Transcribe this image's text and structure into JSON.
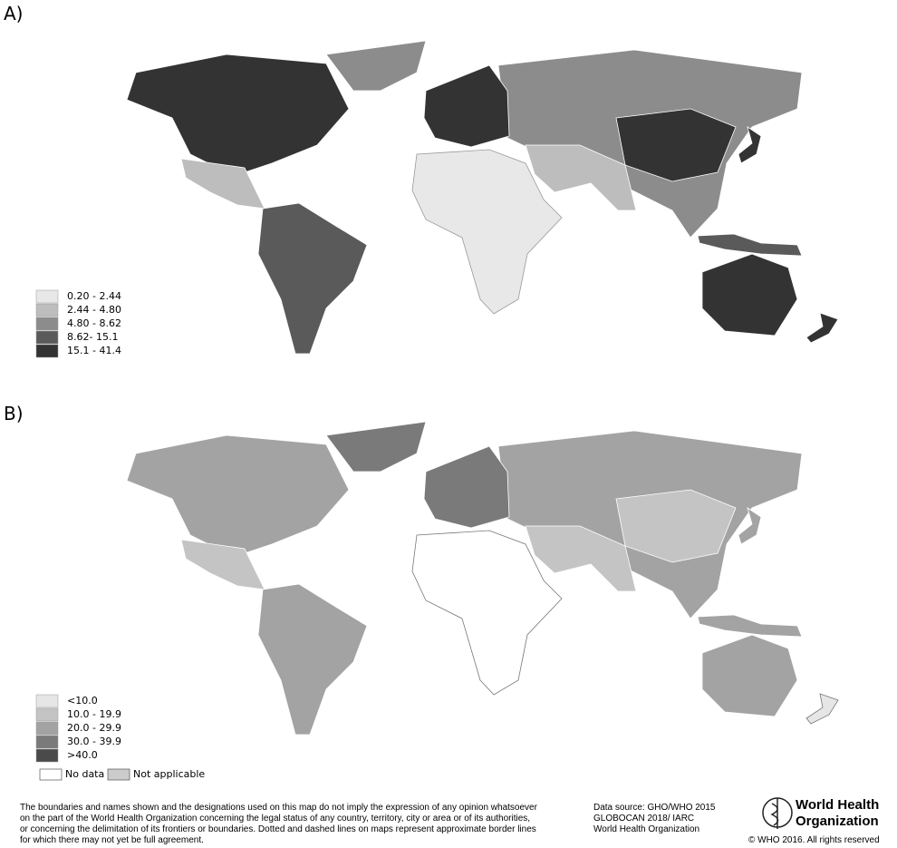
{
  "panels": [
    {
      "label": "A)",
      "legend": [
        {
          "label": "0.20 - 2.44",
          "color": "#e8e8e8"
        },
        {
          "label": "2.44 - 4.80",
          "color": "#bdbdbd"
        },
        {
          "label": "4.80 - 8.62",
          "color": "#8c8c8c"
        },
        {
          "label": "8.62- 15.1",
          "color": "#5a5a5a"
        },
        {
          "label": "15.1 - 41.4",
          "color": "#333333"
        }
      ]
    },
    {
      "label": "B)",
      "legend": [
        {
          "label": "<10.0",
          "color": "#e6e6e6"
        },
        {
          "label": "10.0 - 19.9",
          "color": "#c4c4c4"
        },
        {
          "label": "20.0 - 29.9",
          "color": "#a3a3a3"
        },
        {
          "label": "30.0 - 39.9",
          "color": "#7a7a7a"
        },
        {
          "label": ">40.0",
          "color": "#4a4a4a"
        }
      ],
      "extra_legend": [
        {
          "label": "No data",
          "color": "#ffffff"
        },
        {
          "label": "Not applicable",
          "color": "#cccccc"
        }
      ]
    }
  ],
  "footer": {
    "disclaimer": [
      "The boundaries and names shown and the designations used on this map do not imply the expression of any opinion whatsoever",
      "on the part of the World Health Organization concerning the legal status of any country, territory, city or area or of its authorities,",
      "or concerning the delimitation of its frontiers or boundaries. Dotted and dashed lines on maps represent approximate border lines",
      "for which there may not yet be full agreement."
    ],
    "source": [
      "Data source: GHO/WHO 2015",
      "GLOBOCAN 2018/ IARC",
      "World Health Organization"
    ],
    "logo": [
      "World Health",
      "Organization"
    ],
    "copyright": "© WHO 2016. All rights reserved"
  }
}
